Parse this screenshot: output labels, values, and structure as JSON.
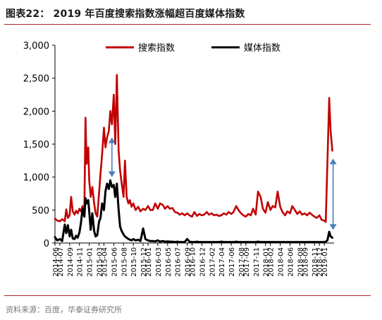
{
  "header": {
    "title": "图表22： 2019 年百度搜索指数涨幅超百度媒体指数"
  },
  "footer": {
    "source": "资料来源：百度，华泰证券研究所"
  },
  "colors": {
    "accent_rule": "#b22222",
    "search_series": "#c00000",
    "media_series": "#000000",
    "arrow": "#4a7ebb"
  },
  "chart_data": {
    "type": "line",
    "title": "",
    "xlabel": "",
    "ylabel": "",
    "ylim": [
      0,
      3000
    ],
    "yticks": [
      0,
      500,
      1000,
      1500,
      2000,
      2500,
      3000
    ],
    "ytick_labels": [
      "0",
      "500",
      "1,000",
      "1,500",
      "2,000",
      "2,500",
      "3,000"
    ],
    "xlim": [
      "2014-06",
      "2019-03"
    ],
    "xticks": [
      "2014-06",
      "2014-07",
      "2014-09",
      "2014-11",
      "2015-01",
      "2015-03",
      "2015-04",
      "2015-06",
      "2015-08",
      "2015-10",
      "2015-12",
      "2016-01",
      "2016-03",
      "2016-05",
      "2016-07",
      "2016-09",
      "2016-10",
      "2016-12",
      "2017-02",
      "2017-04",
      "2017-06",
      "2017-08",
      "2017-09",
      "2017-11",
      "2018-01",
      "2018-02",
      "2018-04",
      "2018-06",
      "2018-08",
      "2018-09",
      "2018-11",
      "2018-12",
      "2019-01"
    ],
    "grid": false,
    "legend": {
      "placement": "top",
      "entries": [
        "搜索指数",
        "媒体指数"
      ]
    },
    "series": [
      {
        "name": "搜索指数",
        "color": "#c00000",
        "points": [
          [
            "2014-06",
            370
          ],
          [
            "2014-06-15",
            340
          ],
          [
            "2014-07",
            330
          ],
          [
            "2014-07-15",
            360
          ],
          [
            "2014-08",
            330
          ],
          [
            "2014-08-10",
            510
          ],
          [
            "2014-08-20",
            380
          ],
          [
            "2014-09",
            420
          ],
          [
            "2014-09-10",
            700
          ],
          [
            "2014-09-20",
            480
          ],
          [
            "2014-10",
            430
          ],
          [
            "2014-10-10",
            490
          ],
          [
            "2014-10-20",
            450
          ],
          [
            "2014-11",
            520
          ],
          [
            "2014-11-10",
            480
          ],
          [
            "2014-11-20",
            560
          ],
          [
            "2014-12",
            500
          ],
          [
            "2014-12-08",
            1900
          ],
          [
            "2014-12-15",
            1200
          ],
          [
            "2014-12-25",
            1450
          ],
          [
            "2015-01",
            950
          ],
          [
            "2015-01-10",
            700
          ],
          [
            "2015-01-20",
            850
          ],
          [
            "2015-02",
            600
          ],
          [
            "2015-02-10",
            450
          ],
          [
            "2015-02-20",
            400
          ],
          [
            "2015-03",
            750
          ],
          [
            "2015-03-10",
            1050
          ],
          [
            "2015-03-20",
            1350
          ],
          [
            "2015-04",
            1750
          ],
          [
            "2015-04-10",
            1450
          ],
          [
            "2015-04-20",
            1600
          ],
          [
            "2015-05",
            1700
          ],
          [
            "2015-05-10",
            2000
          ],
          [
            "2015-05-20",
            1800
          ],
          [
            "2015-06",
            2250
          ],
          [
            "2015-06-10",
            1500
          ],
          [
            "2015-06-20",
            2550
          ],
          [
            "2015-07",
            1400
          ],
          [
            "2015-07-10",
            1100
          ],
          [
            "2015-07-20",
            900
          ],
          [
            "2015-08",
            700
          ],
          [
            "2015-08-10",
            1250
          ],
          [
            "2015-08-20",
            700
          ],
          [
            "2015-09",
            600
          ],
          [
            "2015-09-10",
            650
          ],
          [
            "2015-09-20",
            550
          ],
          [
            "2015-10",
            600
          ],
          [
            "2015-10-15",
            500
          ],
          [
            "2015-11",
            550
          ],
          [
            "2015-11-15",
            480
          ],
          [
            "2015-12",
            520
          ],
          [
            "2015-12-15",
            500
          ],
          [
            "2016-01",
            560
          ],
          [
            "2016-01-15",
            500
          ],
          [
            "2016-02",
            500
          ],
          [
            "2016-02-15",
            600
          ],
          [
            "2016-03",
            520
          ],
          [
            "2016-03-15",
            600
          ],
          [
            "2016-04",
            580
          ],
          [
            "2016-04-15",
            520
          ],
          [
            "2016-05",
            560
          ],
          [
            "2016-05-15",
            520
          ],
          [
            "2016-06",
            530
          ],
          [
            "2016-06-15",
            470
          ],
          [
            "2016-07",
            460
          ],
          [
            "2016-07-15",
            430
          ],
          [
            "2016-08",
            450
          ],
          [
            "2016-08-15",
            420
          ],
          [
            "2016-09",
            450
          ],
          [
            "2016-09-15",
            420
          ],
          [
            "2016-10",
            400
          ],
          [
            "2016-10-15",
            470
          ],
          [
            "2016-11",
            410
          ],
          [
            "2016-11-15",
            440
          ],
          [
            "2016-12",
            420
          ],
          [
            "2016-12-15",
            430
          ],
          [
            "2017-01",
            470
          ],
          [
            "2017-01-15",
            430
          ],
          [
            "2017-02",
            450
          ],
          [
            "2017-02-15",
            420
          ],
          [
            "2017-03",
            430
          ],
          [
            "2017-03-15",
            410
          ],
          [
            "2017-04",
            420
          ],
          [
            "2017-04-15",
            450
          ],
          [
            "2017-05",
            430
          ],
          [
            "2017-05-15",
            470
          ],
          [
            "2017-06",
            440
          ],
          [
            "2017-06-15",
            470
          ],
          [
            "2017-07",
            560
          ],
          [
            "2017-07-15",
            500
          ],
          [
            "2017-08",
            450
          ],
          [
            "2017-08-15",
            420
          ],
          [
            "2017-09",
            400
          ],
          [
            "2017-09-15",
            440
          ],
          [
            "2017-10",
            420
          ],
          [
            "2017-10-15",
            520
          ],
          [
            "2017-11",
            430
          ],
          [
            "2017-11-15",
            780
          ],
          [
            "2017-12",
            700
          ],
          [
            "2017-12-15",
            520
          ],
          [
            "2018-01",
            460
          ],
          [
            "2018-01-15",
            620
          ],
          [
            "2018-02",
            500
          ],
          [
            "2018-02-15",
            560
          ],
          [
            "2018-03",
            540
          ],
          [
            "2018-03-15",
            780
          ],
          [
            "2018-04",
            550
          ],
          [
            "2018-04-15",
            470
          ],
          [
            "2018-05",
            420
          ],
          [
            "2018-05-15",
            480
          ],
          [
            "2018-06",
            450
          ],
          [
            "2018-06-15",
            560
          ],
          [
            "2018-07",
            500
          ],
          [
            "2018-07-15",
            440
          ],
          [
            "2018-08",
            480
          ],
          [
            "2018-08-15",
            430
          ],
          [
            "2018-09",
            450
          ],
          [
            "2018-09-15",
            420
          ],
          [
            "2018-10",
            460
          ],
          [
            "2018-10-15",
            430
          ],
          [
            "2018-11",
            400
          ],
          [
            "2018-11-15",
            380
          ],
          [
            "2018-12",
            420
          ],
          [
            "2018-12-15",
            350
          ],
          [
            "2019-01",
            340
          ],
          [
            "2019-01-10",
            320
          ],
          [
            "2019-01-20",
            1200
          ],
          [
            "2019-02",
            2200
          ],
          [
            "2019-02-10",
            1700
          ],
          [
            "2019-02-20",
            1400
          ]
        ]
      },
      {
        "name": "媒体指数",
        "color": "#000000",
        "points": [
          [
            "2014-06",
            90
          ],
          [
            "2014-06-15",
            40
          ],
          [
            "2014-07",
            60
          ],
          [
            "2014-07-15",
            30
          ],
          [
            "2014-08",
            280
          ],
          [
            "2014-08-10",
            150
          ],
          [
            "2014-08-20",
            270
          ],
          [
            "2014-09",
            100
          ],
          [
            "2014-09-10",
            200
          ],
          [
            "2014-09-20",
            70
          ],
          [
            "2014-10",
            60
          ],
          [
            "2014-10-10",
            110
          ],
          [
            "2014-10-20",
            80
          ],
          [
            "2014-11",
            160
          ],
          [
            "2014-11-10",
            300
          ],
          [
            "2014-11-20",
            520
          ],
          [
            "2014-12",
            400
          ],
          [
            "2014-12-08",
            680
          ],
          [
            "2014-12-15",
            600
          ],
          [
            "2014-12-25",
            650
          ],
          [
            "2015-01",
            480
          ],
          [
            "2015-01-10",
            200
          ],
          [
            "2015-01-20",
            450
          ],
          [
            "2015-02",
            180
          ],
          [
            "2015-02-10",
            100
          ],
          [
            "2015-02-20",
            120
          ],
          [
            "2015-03",
            320
          ],
          [
            "2015-03-10",
            380
          ],
          [
            "2015-03-20",
            600
          ],
          [
            "2015-04",
            500
          ],
          [
            "2015-04-10",
            780
          ],
          [
            "2015-04-20",
            900
          ],
          [
            "2015-05",
            820
          ],
          [
            "2015-05-10",
            950
          ],
          [
            "2015-05-20",
            850
          ],
          [
            "2015-06",
            880
          ],
          [
            "2015-06-10",
            700
          ],
          [
            "2015-06-20",
            900
          ],
          [
            "2015-07",
            500
          ],
          [
            "2015-07-10",
            250
          ],
          [
            "2015-07-20",
            180
          ],
          [
            "2015-08",
            130
          ],
          [
            "2015-08-10",
            100
          ],
          [
            "2015-08-20",
            80
          ],
          [
            "2015-09",
            60
          ],
          [
            "2015-09-10",
            50
          ],
          [
            "2015-09-20",
            40
          ],
          [
            "2015-10",
            60
          ],
          [
            "2015-10-15",
            40
          ],
          [
            "2015-11",
            50
          ],
          [
            "2015-11-15",
            30
          ],
          [
            "2015-12",
            220
          ],
          [
            "2015-12-15",
            60
          ],
          [
            "2016-01",
            40
          ],
          [
            "2016-01-15",
            30
          ],
          [
            "2016-02",
            30
          ],
          [
            "2016-02-15",
            25
          ],
          [
            "2016-03",
            40
          ],
          [
            "2016-03-15",
            20
          ],
          [
            "2016-04",
            30
          ],
          [
            "2016-04-15",
            20
          ],
          [
            "2016-05",
            25
          ],
          [
            "2016-05-15",
            20
          ],
          [
            "2016-06",
            20
          ],
          [
            "2016-06-15",
            15
          ],
          [
            "2016-07",
            20
          ],
          [
            "2016-07-15",
            15
          ],
          [
            "2016-08",
            15
          ],
          [
            "2016-08-15",
            15
          ],
          [
            "2016-09",
            60
          ],
          [
            "2016-09-15",
            20
          ],
          [
            "2016-10",
            15
          ],
          [
            "2016-10-15",
            15
          ],
          [
            "2016-11",
            20
          ],
          [
            "2016-11-15",
            15
          ],
          [
            "2016-12",
            15
          ],
          [
            "2016-12-15",
            15
          ],
          [
            "2017-01",
            15
          ],
          [
            "2017-01-15",
            15
          ],
          [
            "2017-02",
            15
          ],
          [
            "2017-02-15",
            15
          ],
          [
            "2017-03",
            15
          ],
          [
            "2017-03-15",
            15
          ],
          [
            "2017-04",
            20
          ],
          [
            "2017-04-15",
            15
          ],
          [
            "2017-05",
            15
          ],
          [
            "2017-05-15",
            15
          ],
          [
            "2017-06",
            15
          ],
          [
            "2017-06-15",
            15
          ],
          [
            "2017-07",
            20
          ],
          [
            "2017-07-15",
            15
          ],
          [
            "2017-08",
            15
          ],
          [
            "2017-08-15",
            15
          ],
          [
            "2017-09",
            15
          ],
          [
            "2017-09-15",
            15
          ],
          [
            "2017-10",
            15
          ],
          [
            "2017-10-15",
            15
          ],
          [
            "2017-11",
            15
          ],
          [
            "2017-11-15",
            20
          ],
          [
            "2017-12",
            15
          ],
          [
            "2017-12-15",
            15
          ],
          [
            "2018-01",
            15
          ],
          [
            "2018-01-15",
            15
          ],
          [
            "2018-02",
            15
          ],
          [
            "2018-02-15",
            15
          ],
          [
            "2018-03",
            15
          ],
          [
            "2018-03-15",
            15
          ],
          [
            "2018-04",
            15
          ],
          [
            "2018-04-15",
            15
          ],
          [
            "2018-05",
            15
          ],
          [
            "2018-05-15",
            15
          ],
          [
            "2018-06",
            15
          ],
          [
            "2018-06-15",
            15
          ],
          [
            "2018-07",
            15
          ],
          [
            "2018-07-15",
            15
          ],
          [
            "2018-08",
            15
          ],
          [
            "2018-08-15",
            15
          ],
          [
            "2018-09",
            15
          ],
          [
            "2018-09-15",
            15
          ],
          [
            "2018-10",
            15
          ],
          [
            "2018-10-15",
            15
          ],
          [
            "2018-11",
            15
          ],
          [
            "2018-11-15",
            15
          ],
          [
            "2018-12",
            15
          ],
          [
            "2018-12-15",
            15
          ],
          [
            "2019-01",
            15
          ],
          [
            "2019-01-10",
            20
          ],
          [
            "2019-01-20",
            40
          ],
          [
            "2019-02",
            170
          ],
          [
            "2019-02-10",
            100
          ],
          [
            "2019-02-20",
            80
          ]
        ]
      }
    ],
    "annotations": [
      {
        "type": "double-arrow",
        "x": "2015-05-20",
        "from": 1000,
        "to": 1600
      },
      {
        "type": "double-arrow",
        "x": "2019-02-25",
        "from": 200,
        "to": 1280
      }
    ]
  }
}
